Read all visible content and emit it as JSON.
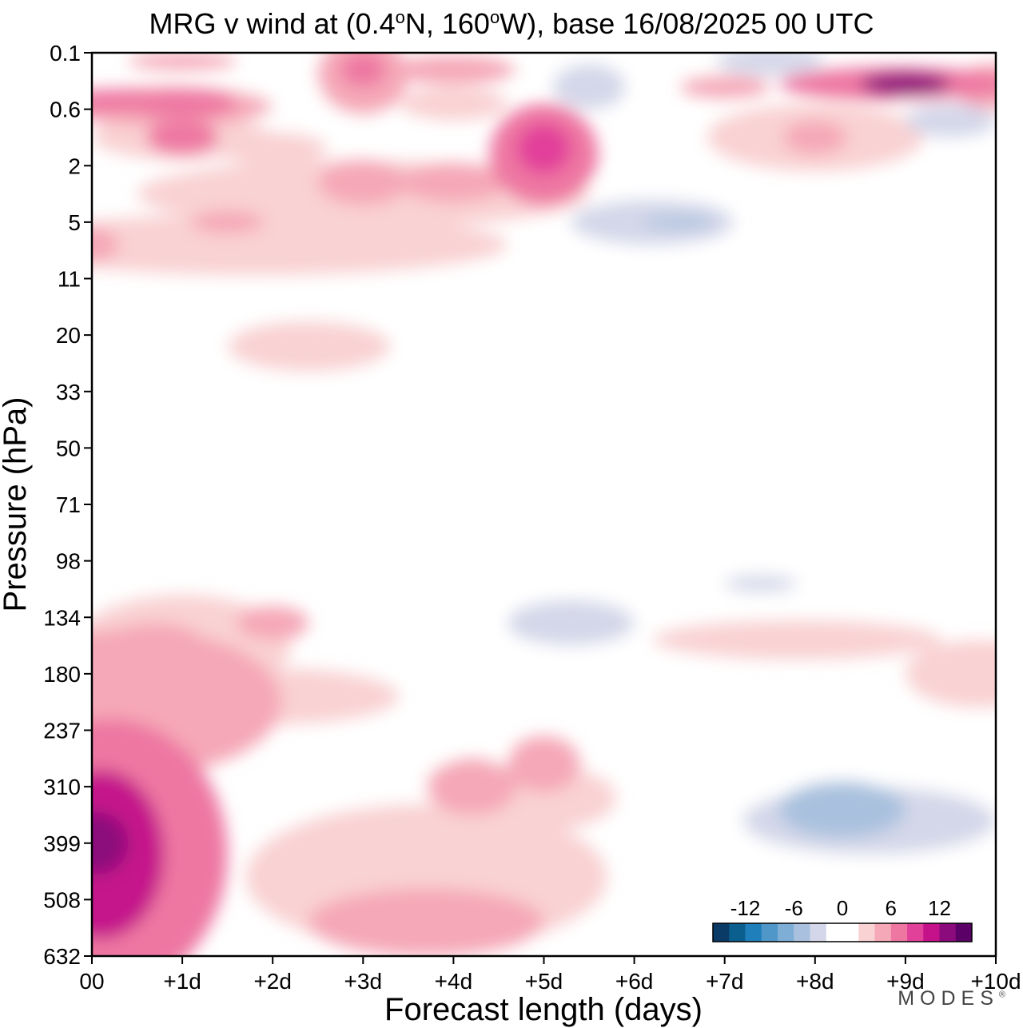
{
  "title": {
    "prefix": "MRG v wind at (0.4",
    "deg1": "o",
    "mid": "N, 160",
    "deg2": "o",
    "suffix": "W),  base 16/08/2025  00 UTC"
  },
  "logo": {
    "text": "MODES",
    "mark": "®"
  },
  "chart_data": {
    "type": "heatmap",
    "title": "MRG v wind at (0.4°N, 160°W),  base 16/08/2025  00 UTC",
    "xlabel": "Forecast length (days)",
    "ylabel": "Pressure (hPa)",
    "x_ticks": [
      "00",
      "+1d",
      "+2d",
      "+3d",
      "+4d",
      "+5d",
      "+6d",
      "+7d",
      "+8d",
      "+9d",
      "+10d"
    ],
    "y_ticks": [
      "0.1",
      "0.6",
      "2",
      "5",
      "11",
      "20",
      "33",
      "50",
      "71",
      "98",
      "134",
      "180",
      "237",
      "310",
      "399",
      "508",
      "632"
    ],
    "xlim": [
      0,
      10
    ],
    "y_levels": 16,
    "colorbar": {
      "labels": [
        "-12",
        "-6",
        "0",
        "6",
        "12"
      ],
      "label_positions": [
        -12,
        -6,
        0,
        6,
        12
      ],
      "min": -16,
      "max": 16,
      "step": 2,
      "colors": [
        "#0a3a66",
        "#0b5f8f",
        "#1f7fbb",
        "#4f97c9",
        "#7eaed5",
        "#a9c1de",
        "#d4d7e9",
        "#ffffff",
        "#ffffff",
        "#f9d2d3",
        "#f5a8b7",
        "#ee77a2",
        "#e2419a",
        "#c5128b",
        "#8c0b7c",
        "#5b0066"
      ]
    },
    "blobs": [
      {
        "x": 0.0,
        "y": 12.6,
        "rx": 0.8,
        "ry": 1.3,
        "v": 3
      },
      {
        "x": 0.2,
        "y": 14.2,
        "rx": 1.3,
        "ry": 2.4,
        "v": 7
      },
      {
        "x": 0.1,
        "y": 14.2,
        "rx": 0.7,
        "ry": 1.5,
        "v": 10
      },
      {
        "x": 0.05,
        "y": 14.0,
        "rx": 0.35,
        "ry": 0.55,
        "v": 13
      },
      {
        "x": 0.5,
        "y": 11.5,
        "rx": 1.6,
        "ry": 1.3,
        "v": 4
      },
      {
        "x": 2.0,
        "y": 11.4,
        "rx": 1.4,
        "ry": 0.5,
        "v": 3
      },
      {
        "x": 0.0,
        "y": 11.7,
        "rx": 0.6,
        "ry": 0.6,
        "v": -1
      },
      {
        "x": 0.7,
        "y": 10.4,
        "rx": 0.5,
        "ry": 0.3,
        "v": 5
      },
      {
        "x": 2.0,
        "y": 10.1,
        "rx": 0.4,
        "ry": 0.3,
        "v": 5
      },
      {
        "x": 1.0,
        "y": 10.5,
        "rx": 1.2,
        "ry": 0.9,
        "v": 3
      },
      {
        "x": 3.3,
        "y": 12.8,
        "rx": 0.8,
        "ry": 0.8,
        "v": -1
      },
      {
        "x": 4.4,
        "y": 13.3,
        "rx": 1.2,
        "ry": 0.8,
        "v": 1
      },
      {
        "x": 4.9,
        "y": 13.2,
        "rx": 0.9,
        "ry": 0.6,
        "v": 2
      },
      {
        "x": 4.2,
        "y": 13.0,
        "rx": 0.5,
        "ry": 0.5,
        "v": 4
      },
      {
        "x": 5.0,
        "y": 12.6,
        "rx": 0.4,
        "ry": 0.5,
        "v": 4
      },
      {
        "x": 3.7,
        "y": 14.6,
        "rx": 2.0,
        "ry": 1.3,
        "v": 2
      },
      {
        "x": 3.7,
        "y": 15.4,
        "rx": 1.3,
        "ry": 0.6,
        "v": 4
      },
      {
        "x": 8.6,
        "y": 13.4,
        "rx": 2.4,
        "ry": 1.6,
        "v": -1
      },
      {
        "x": 8.6,
        "y": 14.6,
        "rx": 1.6,
        "ry": 0.9,
        "v": -1
      },
      {
        "x": 8.6,
        "y": 13.6,
        "rx": 1.4,
        "ry": 0.6,
        "v": -3
      },
      {
        "x": 8.3,
        "y": 13.4,
        "rx": 0.7,
        "ry": 0.5,
        "v": -5
      },
      {
        "x": 9.3,
        "y": 15.0,
        "rx": 0.9,
        "ry": 1.5,
        "v": -1
      },
      {
        "x": 5.3,
        "y": 10.1,
        "rx": 0.7,
        "ry": 0.4,
        "v": -3
      },
      {
        "x": 6.0,
        "y": 10.6,
        "rx": 1.2,
        "ry": 0.4,
        "v": -1
      },
      {
        "x": 5.3,
        "y": 15.5,
        "rx": 0.5,
        "ry": 0.4,
        "v": -1
      },
      {
        "x": 8.0,
        "y": 9.3,
        "rx": 1.8,
        "ry": 0.35,
        "v": -1
      },
      {
        "x": 7.4,
        "y": 9.4,
        "rx": 0.4,
        "ry": 0.15,
        "v": -3
      },
      {
        "x": 7.8,
        "y": 10.4,
        "rx": 1.6,
        "ry": 0.35,
        "v": 3
      },
      {
        "x": 9.8,
        "y": 11.0,
        "rx": 0.8,
        "ry": 0.6,
        "v": 3
      },
      {
        "x": 5.0,
        "y": 8.7,
        "rx": 2.2,
        "ry": 0.35,
        "v": 1
      },
      {
        "x": 9.5,
        "y": 8.6,
        "rx": 1.2,
        "ry": 0.3,
        "v": -1
      },
      {
        "x": 7.0,
        "y": 8.9,
        "rx": 2.6,
        "ry": 0.35,
        "v": 1
      },
      {
        "x": 6.2,
        "y": 6.5,
        "rx": 1.4,
        "ry": 0.3,
        "v": 1
      },
      {
        "x": 5.7,
        "y": 7.6,
        "rx": 0.6,
        "ry": 0.3,
        "v": -1
      },
      {
        "x": 4.0,
        "y": 7.5,
        "rx": 0.4,
        "ry": 0.3,
        "v": 1
      },
      {
        "x": 2.0,
        "y": 7.0,
        "rx": 1.6,
        "ry": 0.35,
        "v": 1
      },
      {
        "x": 1.0,
        "y": 5.6,
        "rx": 1.8,
        "ry": 0.8,
        "v": 1
      },
      {
        "x": 2.4,
        "y": 5.2,
        "rx": 0.9,
        "ry": 0.45,
        "v": 3
      },
      {
        "x": 1.0,
        "y": 7.4,
        "rx": 0.9,
        "ry": 0.5,
        "v": 1
      },
      {
        "x": 3.0,
        "y": 6.0,
        "rx": 2.4,
        "ry": 0.5,
        "v": 1
      },
      {
        "x": 3.5,
        "y": 4.3,
        "rx": 2.0,
        "ry": 0.5,
        "v": 1
      },
      {
        "x": 7.4,
        "y": 4.4,
        "rx": 2.4,
        "ry": 0.4,
        "v": 1
      },
      {
        "x": 9.0,
        "y": 4.0,
        "rx": 1.4,
        "ry": 0.3,
        "v": 1
      },
      {
        "x": 7.2,
        "y": 5.2,
        "rx": 1.4,
        "ry": 0.3,
        "v": 1
      },
      {
        "x": 9.3,
        "y": 5.3,
        "rx": 0.3,
        "ry": 0.3,
        "v": -1
      },
      {
        "x": 0.5,
        "y": 3.9,
        "rx": 1.6,
        "ry": 0.8,
        "v": 1
      },
      {
        "x": 1.8,
        "y": 3.4,
        "rx": 2.8,
        "ry": 0.55,
        "v": 2
      },
      {
        "x": 1.5,
        "y": 3.0,
        "rx": 0.4,
        "ry": 0.2,
        "v": 4
      },
      {
        "x": 0.0,
        "y": 3.4,
        "rx": 0.3,
        "ry": 0.3,
        "v": 4
      },
      {
        "x": 3.0,
        "y": 2.5,
        "rx": 2.5,
        "ry": 0.6,
        "v": 2
      },
      {
        "x": 3.0,
        "y": 2.3,
        "rx": 0.5,
        "ry": 0.4,
        "v": 4
      },
      {
        "x": 4.0,
        "y": 2.3,
        "rx": 0.6,
        "ry": 0.35,
        "v": 4
      },
      {
        "x": 5.0,
        "y": 1.8,
        "rx": 0.6,
        "ry": 0.9,
        "v": 6
      },
      {
        "x": 5.0,
        "y": 1.7,
        "rx": 0.3,
        "ry": 0.45,
        "v": 8
      },
      {
        "x": 1.0,
        "y": 1.5,
        "rx": 1.0,
        "ry": 0.4,
        "v": 3
      },
      {
        "x": 1.0,
        "y": 1.5,
        "rx": 0.4,
        "ry": 0.3,
        "v": 6
      },
      {
        "x": 2.0,
        "y": 1.7,
        "rx": 0.6,
        "ry": 0.3,
        "v": 3
      },
      {
        "x": 0.8,
        "y": 0.95,
        "rx": 1.2,
        "ry": 0.35,
        "v": 4
      },
      {
        "x": 1.0,
        "y": 0.9,
        "rx": 0.6,
        "ry": 0.25,
        "v": 7
      },
      {
        "x": 0.2,
        "y": 0.85,
        "rx": 0.6,
        "ry": 0.2,
        "v": 7
      },
      {
        "x": 3.0,
        "y": 0.4,
        "rx": 0.5,
        "ry": 0.7,
        "v": 4
      },
      {
        "x": 3.0,
        "y": 0.3,
        "rx": 0.25,
        "ry": 0.3,
        "v": 7
      },
      {
        "x": 4.0,
        "y": 0.3,
        "rx": 0.7,
        "ry": 0.25,
        "v": 4
      },
      {
        "x": 4.0,
        "y": 0.9,
        "rx": 0.6,
        "ry": 0.3,
        "v": 3
      },
      {
        "x": 1.0,
        "y": 0.15,
        "rx": 0.6,
        "ry": 0.15,
        "v": 4
      },
      {
        "x": 2.0,
        "y": 1.0,
        "rx": 1.3,
        "ry": 0.4,
        "v": 1
      },
      {
        "x": 3.5,
        "y": 1.6,
        "rx": 0.3,
        "ry": 0.5,
        "v": -1
      },
      {
        "x": 8.9,
        "y": 0.55,
        "rx": 1.3,
        "ry": 0.3,
        "v": 7
      },
      {
        "x": 9.0,
        "y": 0.55,
        "rx": 0.5,
        "ry": 0.2,
        "v": 13
      },
      {
        "x": 8.0,
        "y": 1.5,
        "rx": 1.2,
        "ry": 0.6,
        "v": 2
      },
      {
        "x": 8.0,
        "y": 1.5,
        "rx": 0.35,
        "ry": 0.3,
        "v": 5
      },
      {
        "x": 7.0,
        "y": 0.6,
        "rx": 0.5,
        "ry": 0.2,
        "v": 4
      },
      {
        "x": 10.0,
        "y": 0.6,
        "rx": 0.5,
        "ry": 0.4,
        "v": 4
      },
      {
        "x": 7.5,
        "y": 0.15,
        "rx": 0.6,
        "ry": 0.25,
        "v": -3
      },
      {
        "x": 5.5,
        "y": 0.6,
        "rx": 0.4,
        "ry": 0.4,
        "v": -3
      },
      {
        "x": 9.5,
        "y": 1.2,
        "rx": 0.5,
        "ry": 0.3,
        "v": -3
      },
      {
        "x": 6.2,
        "y": 3.0,
        "rx": 0.9,
        "ry": 0.4,
        "v": -3
      },
      {
        "x": 6.5,
        "y": 3.0,
        "rx": 0.4,
        "ry": 0.1,
        "v": -5
      },
      {
        "x": 9.2,
        "y": 3.0,
        "rx": 1.3,
        "ry": 0.6,
        "v": -1
      },
      {
        "x": 6.0,
        "y": 2.6,
        "rx": 0.6,
        "ry": 0.4,
        "v": -1
      },
      {
        "x": 9.7,
        "y": 2.2,
        "rx": 0.4,
        "ry": 0.5,
        "v": -1
      },
      {
        "x": 6.5,
        "y": 1.8,
        "rx": 0.5,
        "ry": 0.5,
        "v": -1
      },
      {
        "x": 5.0,
        "y": 0.3,
        "rx": 0.6,
        "ry": 0.3,
        "v": 1
      },
      {
        "x": 6.5,
        "y": 0.3,
        "rx": 0.6,
        "ry": 0.3,
        "v": -1
      },
      {
        "x": 9.5,
        "y": 0.9,
        "rx": 0.6,
        "ry": 0.3,
        "v": 1
      }
    ]
  }
}
